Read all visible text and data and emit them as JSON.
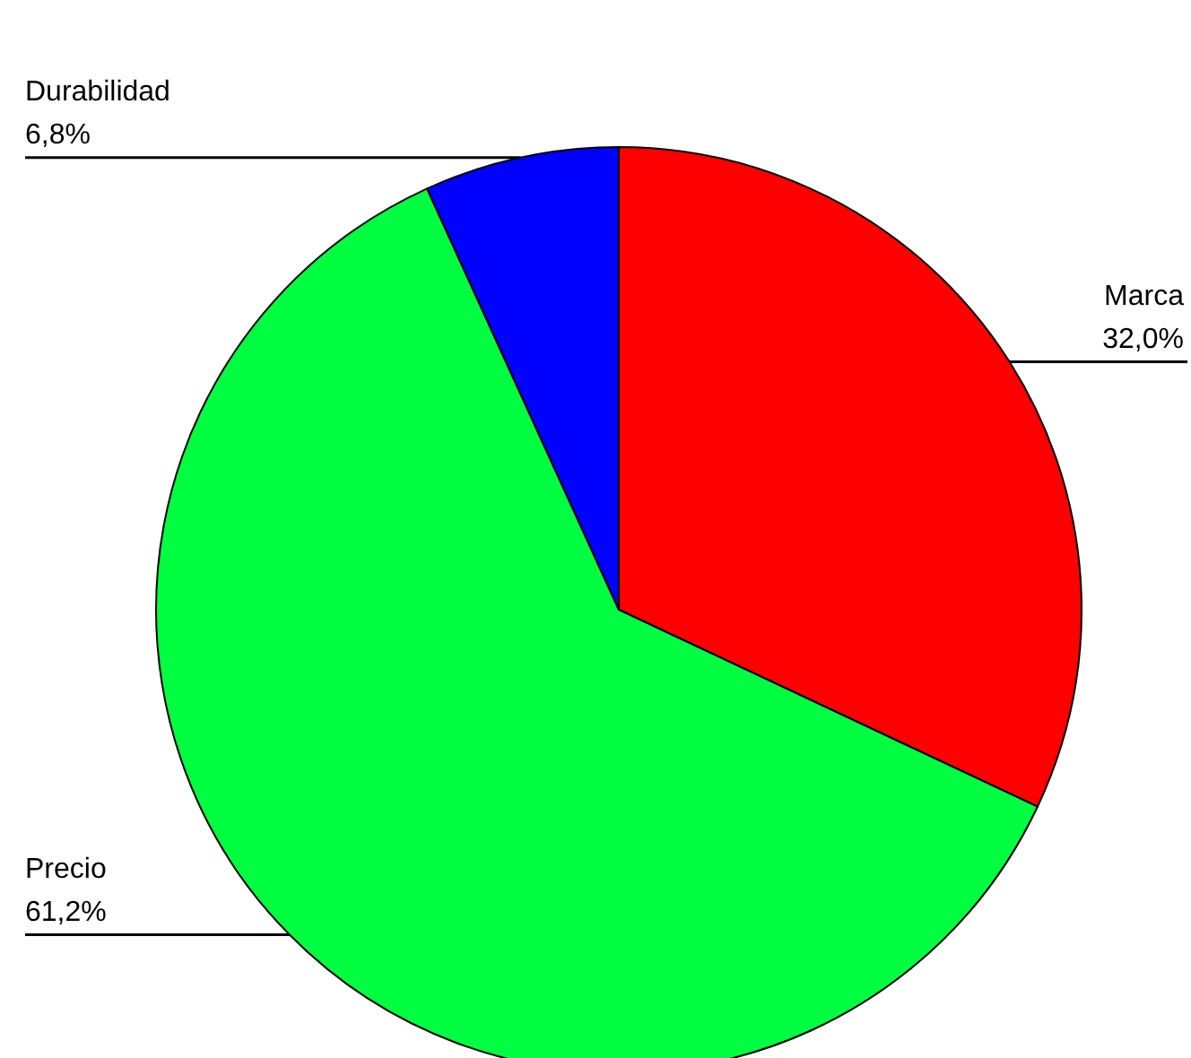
{
  "chart_data": {
    "type": "pie",
    "categories": [
      "Marca",
      "Precio",
      "Durabilidad"
    ],
    "values": [
      32.0,
      61.2,
      6.8
    ],
    "colors": [
      "#ff0000",
      "#00ff40",
      "#0000ff"
    ],
    "value_labels": [
      "32,0%",
      "61,2%",
      "6,8%"
    ]
  }
}
